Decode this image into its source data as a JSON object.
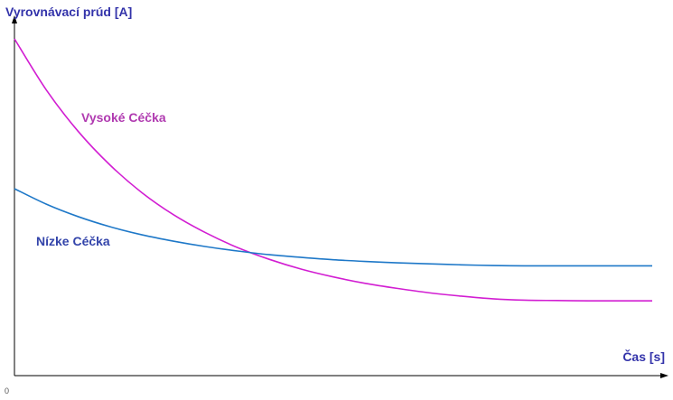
{
  "chart_data": {
    "type": "line",
    "title": "",
    "xlabel": "Čas [s]",
    "ylabel": "Vyrovnávací prúd [A]",
    "origin_label": "0",
    "xlim": [
      0,
      10
    ],
    "ylim": [
      0,
      10
    ],
    "grid": false,
    "legend": "none",
    "series": [
      {
        "name": "Vysoké Céčka",
        "color": "#d21ed2",
        "x": [
          0,
          0.5,
          1,
          1.5,
          2,
          2.5,
          3,
          3.5,
          4,
          4.5,
          5,
          5.5,
          6,
          6.5,
          7,
          7.5,
          8,
          8.5,
          9,
          9.5,
          10
        ],
        "y": [
          10.0,
          8.48,
          7.25,
          6.25,
          5.43,
          4.77,
          4.24,
          3.8,
          3.45,
          3.16,
          2.93,
          2.74,
          2.59,
          2.46,
          2.36,
          2.28,
          2.24,
          2.23,
          2.22,
          2.22,
          2.22
        ]
      },
      {
        "name": "Nízke Céčka",
        "color": "#1e78c8",
        "x": [
          0,
          0.5,
          1,
          1.5,
          2,
          2.5,
          3,
          3.5,
          4,
          4.5,
          5,
          5.5,
          6,
          6.5,
          7,
          7.5,
          8,
          8.5,
          9,
          9.5,
          10
        ],
        "y": [
          5.55,
          5.09,
          4.72,
          4.42,
          4.18,
          3.99,
          3.83,
          3.7,
          3.59,
          3.51,
          3.44,
          3.39,
          3.35,
          3.32,
          3.29,
          3.27,
          3.26,
          3.26,
          3.26,
          3.26,
          3.26
        ]
      }
    ],
    "colors": {
      "axis": "#000000",
      "axis_label": "#3333aa",
      "origin": "#555555"
    }
  }
}
